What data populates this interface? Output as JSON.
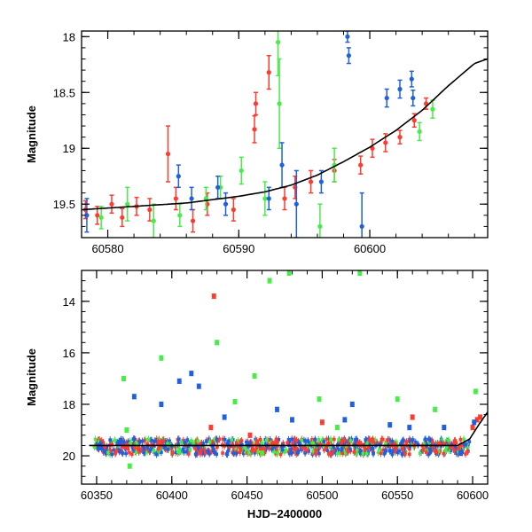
{
  "colors": {
    "red": "#ff3b2f",
    "green": "#44ee44",
    "blue": "#1f5fe0",
    "curve": "#000000"
  },
  "chart_data": [
    {
      "type": "scatter",
      "ylabel": "Magnitude",
      "xlim": [
        60578,
        60609
      ],
      "ylim": [
        19.8,
        17.95
      ],
      "y_inverted": true,
      "x_ticks": [
        60580,
        60590,
        60600
      ],
      "y_ticks": [
        18,
        18.5,
        19,
        19.5
      ],
      "curve": [
        [
          60578,
          19.55
        ],
        [
          60582,
          19.52
        ],
        [
          60586,
          19.49
        ],
        [
          60590,
          19.43
        ],
        [
          60592,
          19.39
        ],
        [
          60594,
          19.33
        ],
        [
          60596,
          19.24
        ],
        [
          60598,
          19.12
        ],
        [
          60600,
          18.99
        ],
        [
          60602,
          18.84
        ],
        [
          60604,
          18.66
        ],
        [
          60606,
          18.44
        ],
        [
          60608,
          18.24
        ],
        [
          60609,
          18.2
        ]
      ],
      "series": [
        {
          "color": "red",
          "points": [
            [
              60578.3,
              19.55,
              0.08
            ],
            [
              60579.2,
              19.6,
              0.08
            ],
            [
              60580.3,
              19.5,
              0.08
            ],
            [
              60581.1,
              19.62,
              0.08
            ],
            [
              60582.2,
              19.52,
              0.08
            ],
            [
              60583.2,
              19.55,
              0.1
            ],
            [
              60584.6,
              19.05,
              0.25
            ],
            [
              60585.2,
              19.45,
              0.1
            ],
            [
              60586.5,
              19.65,
              0.1
            ],
            [
              60587.6,
              19.5,
              0.1
            ],
            [
              60589.6,
              19.55,
              0.1
            ],
            [
              60591.2,
              18.83,
              0.12
            ],
            [
              60591.3,
              18.6,
              0.1
            ],
            [
              60592.3,
              18.32,
              0.15
            ],
            [
              60593.5,
              19.45,
              0.1
            ],
            [
              60594.3,
              19.35,
              0.1
            ],
            [
              60595.5,
              19.3,
              0.1
            ],
            [
              60597.3,
              19.2,
              0.1
            ],
            [
              60599.3,
              19.15,
              0.08
            ],
            [
              60600.2,
              19.0,
              0.08
            ],
            [
              60601.2,
              18.95,
              0.08
            ],
            [
              60602.3,
              18.9,
              0.06
            ],
            [
              60603.4,
              18.75,
              0.06
            ],
            [
              60604.3,
              18.6,
              0.05
            ]
          ]
        },
        {
          "color": "green",
          "points": [
            [
              60579.5,
              19.62,
              0.1
            ],
            [
              60581.5,
              19.5,
              0.15
            ],
            [
              60583.5,
              19.65,
              0.15
            ],
            [
              60585.5,
              19.6,
              0.1
            ],
            [
              60587.5,
              19.45,
              0.1
            ],
            [
              60588.6,
              19.35,
              0.1
            ],
            [
              60590.2,
              19.2,
              0.12
            ],
            [
              60592.0,
              19.45,
              0.15
            ],
            [
              60593.0,
              18.05,
              0.3
            ],
            [
              60593.1,
              18.6,
              0.4
            ],
            [
              60596.2,
              19.7,
              0.2
            ],
            [
              60597.3,
              19.15,
              0.15
            ],
            [
              60603.8,
              18.85,
              0.08
            ],
            [
              60604.8,
              18.65,
              0.08
            ]
          ]
        },
        {
          "color": "blue",
          "points": [
            [
              60578.4,
              19.6,
              0.15
            ],
            [
              60585.4,
              19.25,
              0.1
            ],
            [
              60586.4,
              19.45,
              0.1
            ],
            [
              60588.4,
              19.35,
              0.1
            ],
            [
              60589.0,
              19.5,
              0.1
            ],
            [
              60592.3,
              19.45,
              0.1
            ],
            [
              60593.3,
              19.15,
              0.2
            ],
            [
              60594.4,
              19.5,
              0.3
            ],
            [
              60596.3,
              19.3,
              0.1
            ],
            [
              60598.3,
              18.0,
              0.05
            ],
            [
              60598.4,
              18.17,
              0.07
            ],
            [
              60599.4,
              19.7,
              0.3
            ],
            [
              60601.3,
              18.55,
              0.08
            ],
            [
              60602.3,
              18.47,
              0.08
            ],
            [
              60603.2,
              18.38,
              0.07
            ],
            [
              60603.3,
              18.55,
              0.07
            ]
          ]
        }
      ]
    },
    {
      "type": "scatter",
      "xlabel": "HJD−2400000",
      "ylabel": "Magnitude",
      "xlim": [
        60340,
        60610
      ],
      "ylim": [
        21.1,
        12.8
      ],
      "y_inverted": true,
      "x_ticks": [
        60350,
        60400,
        60450,
        60500,
        60550,
        60600
      ],
      "y_ticks": [
        14,
        16,
        18,
        20
      ],
      "baseline": [
        [
          60345,
          19.6
        ],
        [
          60590,
          19.6
        ],
        [
          60598,
          19.35
        ],
        [
          60604,
          18.8
        ],
        [
          60610,
          18.3
        ]
      ],
      "scatter_band": {
        "x": [
          60348,
          60598
        ],
        "y": [
          19.35,
          19.95
        ]
      },
      "series": [
        {
          "color": "red",
          "points": [
            [
              60428,
              13.8
            ],
            [
              60426,
              18.9
            ],
            [
              60452,
              19.2
            ],
            [
              60500,
              18.7
            ],
            [
              60560,
              18.5
            ],
            [
              60600,
              18.9
            ],
            [
              60603,
              18.6
            ],
            [
              60605,
              18.5
            ]
          ]
        },
        {
          "color": "green",
          "points": [
            [
              60368,
              17.0
            ],
            [
              60370,
              19.0
            ],
            [
              60393,
              16.2
            ],
            [
              60430,
              15.6
            ],
            [
              60442,
              17.9
            ],
            [
              60455,
              16.9
            ],
            [
              60465,
              13.2
            ],
            [
              60478,
              12.9
            ],
            [
              60498,
              17.8
            ],
            [
              60510,
              18.9
            ],
            [
              60525,
              12.9
            ],
            [
              60550,
              17.8
            ],
            [
              60575,
              18.2
            ],
            [
              60602,
              17.5
            ],
            [
              60372,
              20.4
            ],
            [
              60460,
              19.9
            ]
          ]
        },
        {
          "color": "blue",
          "points": [
            [
              60375,
              17.7
            ],
            [
              60393,
              18.0
            ],
            [
              60405,
              17.1
            ],
            [
              60413,
              16.8
            ],
            [
              60418,
              17.3
            ],
            [
              60435,
              18.5
            ],
            [
              60470,
              18.2
            ],
            [
              60480,
              18.6
            ],
            [
              60515,
              18.6
            ],
            [
              60520,
              18.0
            ],
            [
              60545,
              18.8
            ],
            [
              60558,
              18.9
            ],
            [
              60581,
              18.9
            ],
            [
              60592,
              19.9
            ],
            [
              60601,
              18.7
            ]
          ]
        }
      ]
    }
  ]
}
